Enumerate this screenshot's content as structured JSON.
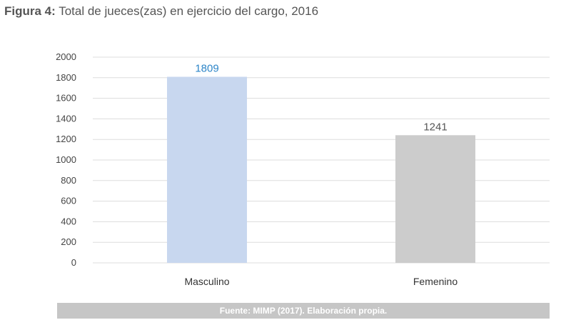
{
  "figure_label": "Figura 4:",
  "title_text": "Total de jueces(zas) en ejercicio del cargo, 2016",
  "source": "Fuente: MIMP (2017). Elaboración propia.",
  "colors": {
    "masculino": "#c8d7ef",
    "femenino": "#cccccc",
    "label_masculino": "#2e86c8",
    "label_femenino": "#555555",
    "grid": "#dddddd"
  },
  "chart_data": {
    "type": "bar",
    "categories": [
      "Masculino",
      "Femenino"
    ],
    "values": [
      1809,
      1241
    ],
    "data_labels": [
      "1809",
      "1241"
    ],
    "yticks": [
      "0",
      "200",
      "400",
      "600",
      "800",
      "1000",
      "1200",
      "1400",
      "1600",
      "1800",
      "2000"
    ],
    "ylim": [
      0,
      2000
    ],
    "grid": true,
    "legend": "none"
  }
}
